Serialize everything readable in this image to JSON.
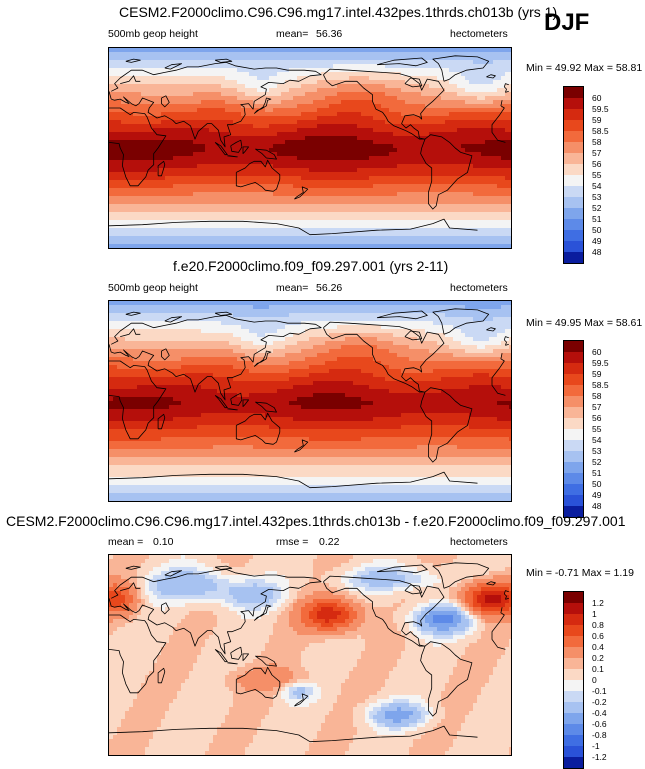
{
  "season": "DJF",
  "colors": {
    "land_outline": "#000000",
    "frame": "#000000"
  },
  "chart_data": [
    {
      "type": "heatmap",
      "title": "CESM2.F2000climo.C96.C96.mg17.intel.432pes.1thrds.ch013b (yrs 1)",
      "variable": "500mb geop height",
      "stat_label": "mean=",
      "stat_value": "56.36",
      "units": "hectometers",
      "min_max": "Min =  49.92 Max =  58.81",
      "min": 49.92,
      "max": 58.81,
      "kind": "height",
      "xlim": [
        0,
        360
      ],
      "ylim": [
        -90,
        90
      ],
      "colorbar": {
        "levels": [
          "60",
          "59.5",
          "59",
          "58.5",
          "58",
          "57",
          "56",
          "55",
          "54",
          "53",
          "52",
          "51",
          "50",
          "49",
          "48"
        ],
        "colors": [
          "#7a0000",
          "#b50f0b",
          "#d52a10",
          "#e8481c",
          "#f26a3c",
          "#f58f68",
          "#f9b597",
          "#fbd9c5",
          "#f4f4f4",
          "#cad9f4",
          "#a7c2f1",
          "#7ea5ec",
          "#5d8ae8",
          "#3f6ee3",
          "#2a52d8",
          "#0a1d9e"
        ]
      }
    },
    {
      "type": "heatmap",
      "title": "f.e20.F2000climo.f09_f09.297.001 (yrs 2-11)",
      "variable": "500mb geop height",
      "stat_label": "mean=",
      "stat_value": "56.26",
      "units": "hectometers",
      "min_max": "Min =  49.95 Max =  58.61",
      "min": 49.95,
      "max": 58.61,
      "kind": "height",
      "xlim": [
        0,
        360
      ],
      "ylim": [
        -90,
        90
      ],
      "colorbar": {
        "levels": [
          "60",
          "59.5",
          "59",
          "58.5",
          "58",
          "57",
          "56",
          "55",
          "54",
          "53",
          "52",
          "51",
          "50",
          "49",
          "48"
        ],
        "colors": [
          "#7a0000",
          "#b50f0b",
          "#d52a10",
          "#e8481c",
          "#f26a3c",
          "#f58f68",
          "#f9b597",
          "#fbd9c5",
          "#f4f4f4",
          "#cad9f4",
          "#a7c2f1",
          "#7ea5ec",
          "#5d8ae8",
          "#3f6ee3",
          "#2a52d8",
          "#0a1d9e"
        ]
      }
    },
    {
      "type": "heatmap",
      "title": "CESM2.F2000climo.C96.C96.mg17.intel.432pes.1thrds.ch013b - f.e20.F2000climo.f09_f09.297.001",
      "stat_label": "mean =",
      "stat_value": "0.10",
      "stat2_label": "rmse =",
      "stat2_value": "0.22",
      "units": "hectometers",
      "min_max": "Min =  -0.71 Max =   1.19",
      "min": -0.71,
      "max": 1.19,
      "kind": "diff",
      "xlim": [
        0,
        360
      ],
      "ylim": [
        -90,
        90
      ],
      "colorbar": {
        "levels": [
          "1.2",
          "1",
          "0.8",
          "0.6",
          "0.4",
          "0.2",
          "0.1",
          "0",
          "-0.1",
          "-0.2",
          "-0.4",
          "-0.6",
          "-0.8",
          "-1",
          "-1.2"
        ],
        "colors": [
          "#7a0000",
          "#b50f0b",
          "#d52a10",
          "#e8481c",
          "#f26a3c",
          "#f58f68",
          "#f9b597",
          "#fbd9c5",
          "#f4f4f4",
          "#cad9f4",
          "#a7c2f1",
          "#7ea5ec",
          "#5d8ae8",
          "#3f6ee3",
          "#2a52d8",
          "#0a1d9e"
        ]
      }
    }
  ]
}
